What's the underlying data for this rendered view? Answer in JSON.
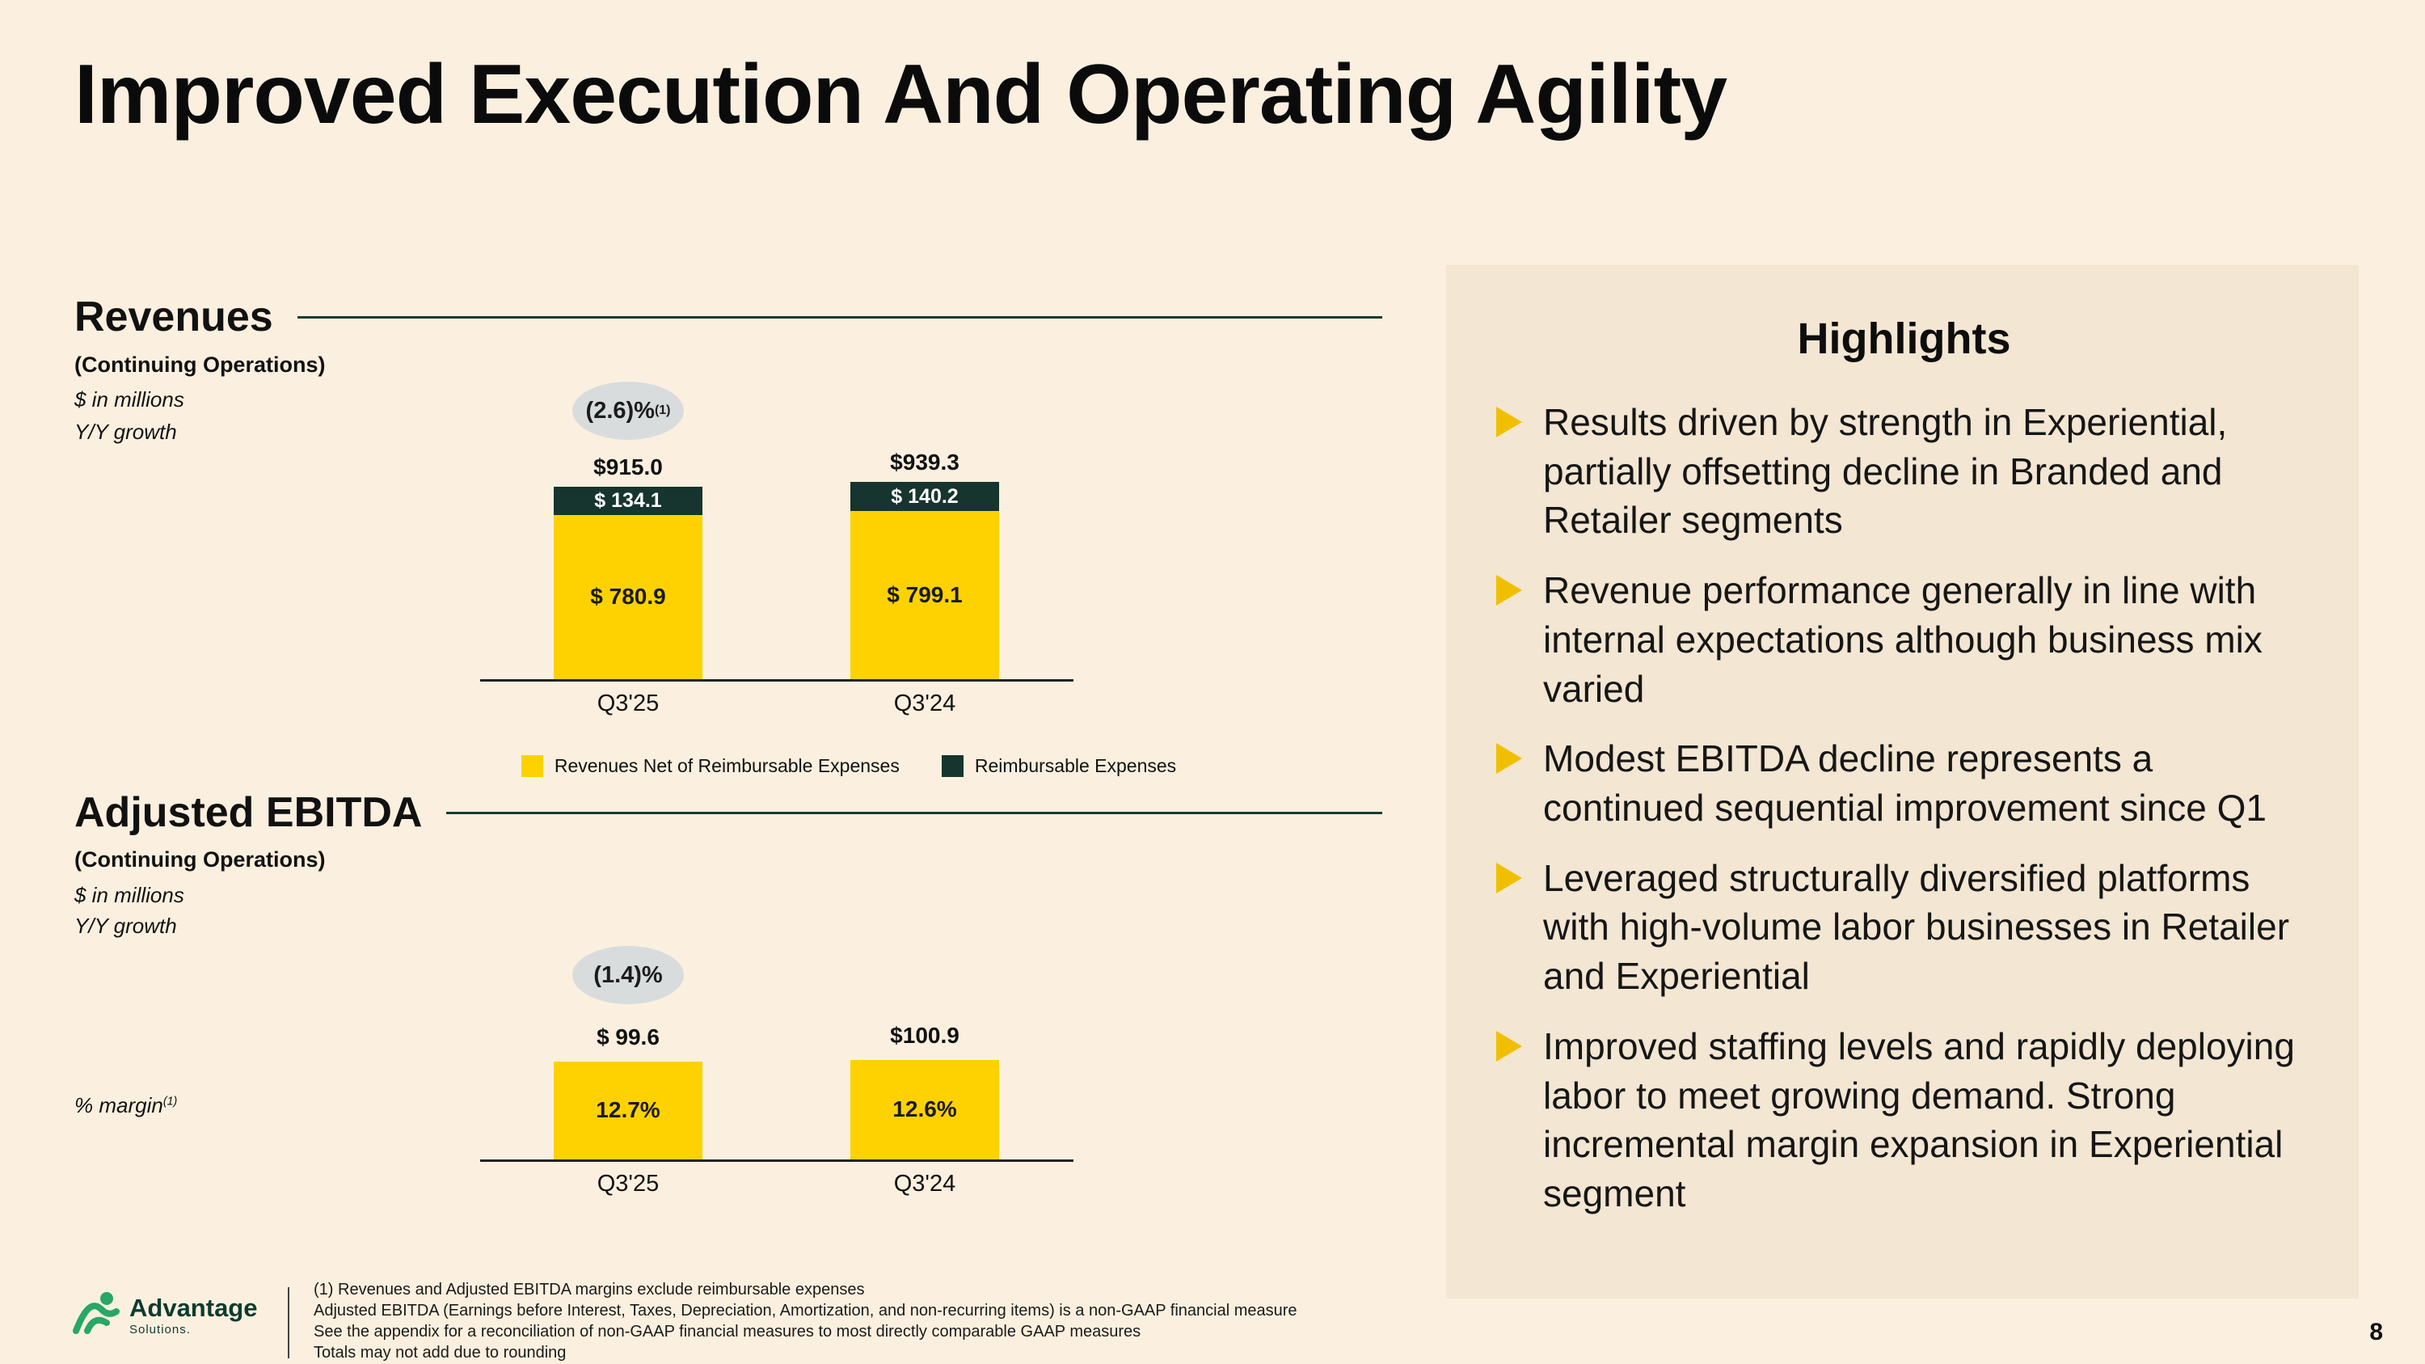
{
  "slide": {
    "title": "Improved Execution And Operating Agility",
    "page_number": "8"
  },
  "colors": {
    "background": "#fbf0df",
    "panel_background": "#f3e6d2",
    "bar_yellow": "#fdd200",
    "bar_dark_green": "#16352e",
    "badge_gray": "#d8dcdd",
    "rule_green": "#183b32",
    "bullet_arrow_yellow": "#f0c000",
    "logo_green": "#27a768"
  },
  "revenues_section": {
    "heading": "Revenues",
    "subheading": "(Continuing Operations)",
    "unit_note": "$ in millions",
    "growth_note": "Y/Y growth"
  },
  "ebitda_section": {
    "heading": "Adjusted EBITDA",
    "subheading": "(Continuing Operations)",
    "unit_note": "$ in millions",
    "growth_note": "Y/Y growth",
    "margin_label": "% margin",
    "margin_footnote_ref": "(1)"
  },
  "chart_data": [
    {
      "type": "bar",
      "stacked": true,
      "title": "Revenues (Continuing Operations)",
      "units": "$ in millions",
      "categories": [
        "Q3'25",
        "Q3'24"
      ],
      "series": [
        {
          "name": "Revenues Net of Reimbursable Expenses",
          "color": "#fdd200",
          "values": [
            780.9,
            799.1
          ],
          "labels": [
            "$ 780.9",
            "$ 799.1"
          ]
        },
        {
          "name": "Reimbursable Expenses",
          "color": "#16352e",
          "values": [
            134.1,
            140.2
          ],
          "labels": [
            "$ 134.1",
            "$ 140.2"
          ]
        }
      ],
      "totals": [
        915.0,
        939.3
      ],
      "total_labels": [
        "$915.0",
        "$939.3"
      ],
      "yoy_growth_label": "(2.6)%",
      "yoy_footnote_ref": "(1)",
      "legend_position": "bottom"
    },
    {
      "type": "bar",
      "title": "Adjusted EBITDA (Continuing Operations)",
      "units": "$ in millions",
      "categories": [
        "Q3'25",
        "Q3'24"
      ],
      "color": "#fdd200",
      "values": [
        99.6,
        100.9
      ],
      "value_labels": [
        "$ 99.6",
        "$100.9"
      ],
      "margin_labels": [
        "12.7%",
        "12.6%"
      ],
      "yoy_growth_label": "(1.4)%"
    }
  ],
  "highlights": {
    "title": "Highlights",
    "bullets": [
      "Results driven by strength in Experiential, partially offsetting decline in Branded and Retailer segments",
      "Revenue performance generally in line with internal expectations although business mix varied",
      "Modest EBITDA decline represents a continued sequential improvement since Q1",
      "Leveraged structurally diversified platforms with high-volume labor businesses in Retailer and Experiential",
      "Improved staffing levels and rapidly deploying labor to meet growing demand. Strong incremental margin expansion in Experiential segment"
    ]
  },
  "footer": {
    "logo_name": "Advantage",
    "logo_sub": "Solutions.",
    "footnotes": [
      "(1)  Revenues and Adjusted EBITDA margins exclude reimbursable expenses",
      "Adjusted EBITDA (Earnings before Interest, Taxes, Depreciation, Amortization, and non-recurring items) is a non-GAAP financial measure",
      "See the appendix for a reconciliation of non-GAAP financial measures to most directly comparable GAAP measures",
      "Totals may not add due to rounding"
    ]
  }
}
